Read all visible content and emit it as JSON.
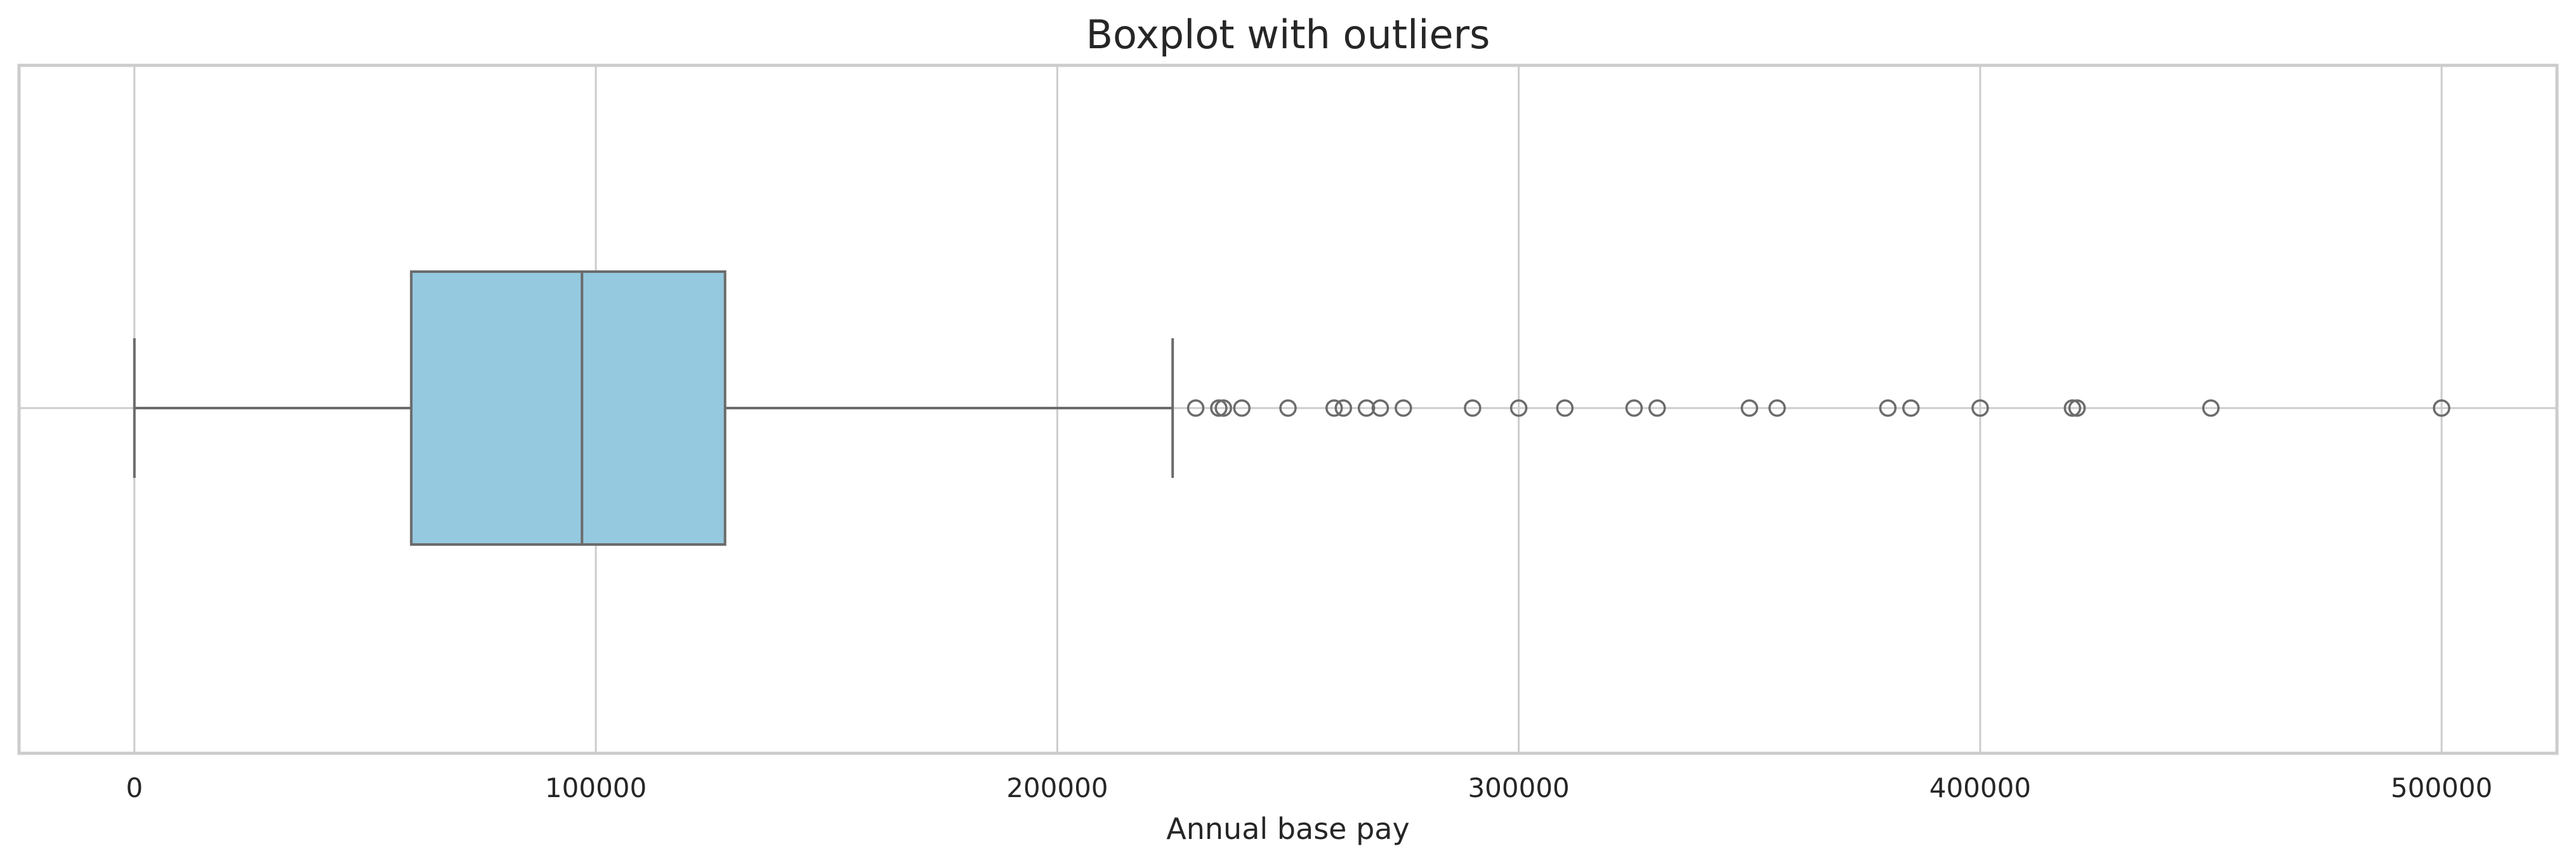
{
  "chart_data": {
    "type": "boxplot",
    "title": "Boxplot with outliers",
    "xlabel": "Annual base pay",
    "ylabel": "",
    "xlim": [
      -25000,
      525000
    ],
    "xticks": [
      0,
      100000,
      200000,
      300000,
      400000,
      500000
    ],
    "xtick_labels": [
      "0",
      "100000",
      "200000",
      "300000",
      "400000",
      "500000"
    ],
    "orientation": "horizontal",
    "grid": true,
    "box_color": "#95c9df",
    "line_color": "#6b6b6b",
    "stats": {
      "whisker_low": 0,
      "q1": 60000,
      "median": 97000,
      "q3": 128000,
      "whisker_high": 225000
    },
    "outliers": [
      230000,
      235000,
      236000,
      240000,
      250000,
      260000,
      262000,
      267000,
      270000,
      275000,
      290000,
      300000,
      310000,
      325000,
      330000,
      350000,
      356000,
      380000,
      385000,
      400000,
      420000,
      421000,
      450000,
      500000
    ]
  }
}
